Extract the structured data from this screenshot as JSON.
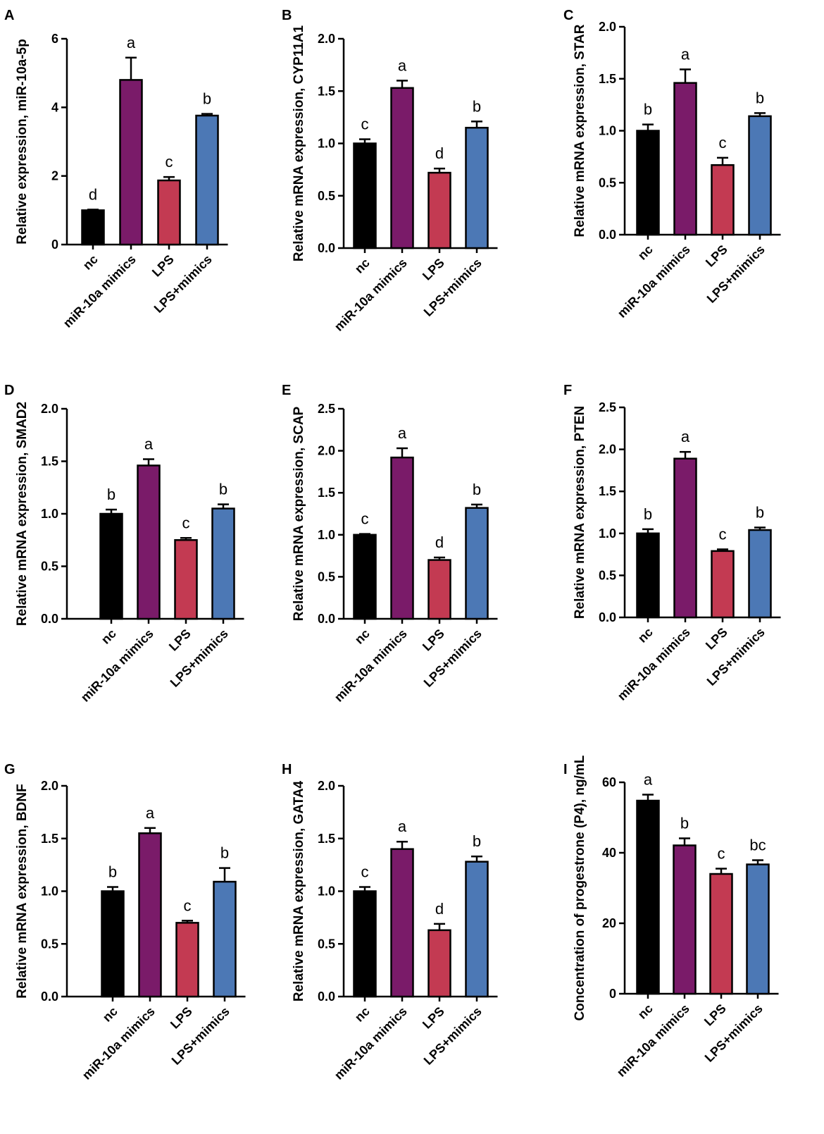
{
  "colors": {
    "nc": "#000000",
    "mimics": "#7a1b69",
    "lps": "#c33a52",
    "lps_mimics": "#4c78b5"
  },
  "chart_data": [
    {
      "panel": "A",
      "type": "bar",
      "ylabel": "Relative expression, miR-10a-5p",
      "categories": [
        "nc",
        "miR-10a mimics",
        "LPS",
        "LPS+mimics"
      ],
      "values": [
        1.0,
        4.8,
        1.87,
        3.76
      ],
      "errors": [
        0.02,
        0.65,
        0.1,
        0.05
      ],
      "letters": [
        "d",
        "a",
        "c",
        "b"
      ],
      "ylim": [
        0,
        6
      ],
      "yticks": [
        "0",
        "2",
        "4",
        "6"
      ]
    },
    {
      "panel": "B",
      "type": "bar",
      "ylabel": "Relative mRNA expression, CYP11A1",
      "categories": [
        "nc",
        "miR-10a mimics",
        "LPS",
        "LPS+mimics"
      ],
      "values": [
        1.0,
        1.53,
        0.72,
        1.15
      ],
      "errors": [
        0.04,
        0.07,
        0.04,
        0.06
      ],
      "letters": [
        "c",
        "a",
        "d",
        "b"
      ],
      "ylim": [
        0,
        2.0
      ],
      "yticks": [
        "0.0",
        "0.5",
        "1.0",
        "1.5",
        "2.0"
      ]
    },
    {
      "panel": "C",
      "type": "bar",
      "ylabel": "Relative mRNA expression, STAR",
      "categories": [
        "nc",
        "miR-10a mimics",
        "LPS",
        "LPS+mimics"
      ],
      "values": [
        1.0,
        1.46,
        0.67,
        1.14
      ],
      "errors": [
        0.06,
        0.13,
        0.07,
        0.03
      ],
      "letters": [
        "b",
        "a",
        "c",
        "b"
      ],
      "ylim": [
        0,
        2.0
      ],
      "yticks": [
        "0.0",
        "0.5",
        "1.0",
        "1.5",
        "2.0"
      ]
    },
    {
      "panel": "D",
      "type": "bar",
      "ylabel": "Relative mRNA expression, SMAD2",
      "categories": [
        "nc",
        "miR-10a mimics",
        "LPS",
        "LPS+mimics"
      ],
      "values": [
        1.0,
        1.46,
        0.75,
        1.05
      ],
      "errors": [
        0.04,
        0.06,
        0.02,
        0.04
      ],
      "letters": [
        "b",
        "a",
        "c",
        "b"
      ],
      "ylim": [
        0,
        2.0
      ],
      "yticks": [
        "0.0",
        "0.5",
        "1.0",
        "1.5",
        "2.0"
      ]
    },
    {
      "panel": "E",
      "type": "bar",
      "ylabel": "Relative mRNA expression, SCAP",
      "categories": [
        "nc",
        "miR-10a mimics",
        "LPS",
        "LPS+mimics"
      ],
      "values": [
        1.0,
        1.92,
        0.7,
        1.32
      ],
      "errors": [
        0.01,
        0.11,
        0.03,
        0.04
      ],
      "letters": [
        "c",
        "a",
        "d",
        "b"
      ],
      "ylim": [
        0,
        2.5
      ],
      "yticks": [
        "0.0",
        "0.5",
        "1.0",
        "1.5",
        "2.0",
        "2.5"
      ]
    },
    {
      "panel": "F",
      "type": "bar",
      "ylabel": "Relative mRNA expression, PTEN",
      "categories": [
        "nc",
        "miR-10a mimics",
        "LPS",
        "LPS+mimics"
      ],
      "values": [
        1.0,
        1.89,
        0.79,
        1.04
      ],
      "errors": [
        0.05,
        0.08,
        0.02,
        0.03
      ],
      "letters": [
        "b",
        "a",
        "c",
        "b"
      ],
      "ylim": [
        0,
        2.5
      ],
      "yticks": [
        "0.0",
        "0.5",
        "1.0",
        "1.5",
        "2.0",
        "2.5"
      ]
    },
    {
      "panel": "G",
      "type": "bar",
      "ylabel": "Relative mRNA expression, BDNF",
      "categories": [
        "nc",
        "miR-10a mimics",
        "LPS",
        "LPS+mimics"
      ],
      "values": [
        1.0,
        1.55,
        0.7,
        1.09
      ],
      "errors": [
        0.04,
        0.05,
        0.02,
        0.13
      ],
      "letters": [
        "b",
        "a",
        "c",
        "b"
      ],
      "ylim": [
        0,
        2.0
      ],
      "yticks": [
        "0.0",
        "0.5",
        "1.0",
        "1.5",
        "2.0"
      ]
    },
    {
      "panel": "H",
      "type": "bar",
      "ylabel": "Relative mRNA expression, GATA4",
      "categories": [
        "nc",
        "miR-10a mimics",
        "LPS",
        "LPS+mimics"
      ],
      "values": [
        1.0,
        1.4,
        0.63,
        1.28
      ],
      "errors": [
        0.04,
        0.07,
        0.06,
        0.05
      ],
      "letters": [
        "c",
        "a",
        "d",
        "b"
      ],
      "ylim": [
        0,
        2.0
      ],
      "yticks": [
        "0.0",
        "0.5",
        "1.0",
        "1.5",
        "2.0"
      ]
    },
    {
      "panel": "I",
      "type": "bar",
      "ylabel": "Concentration of progestrone (P4), ng/mL",
      "categories": [
        "nc",
        "miR-10a mimics",
        "LPS",
        "LPS+mimics"
      ],
      "values": [
        54.8,
        42.1,
        34.0,
        36.7
      ],
      "errors": [
        1.7,
        2.0,
        1.5,
        1.2
      ],
      "letters": [
        "a",
        "b",
        "c",
        "bc"
      ],
      "ylim": [
        0,
        60
      ],
      "yticks": [
        "0",
        "20",
        "40",
        "60"
      ]
    }
  ]
}
